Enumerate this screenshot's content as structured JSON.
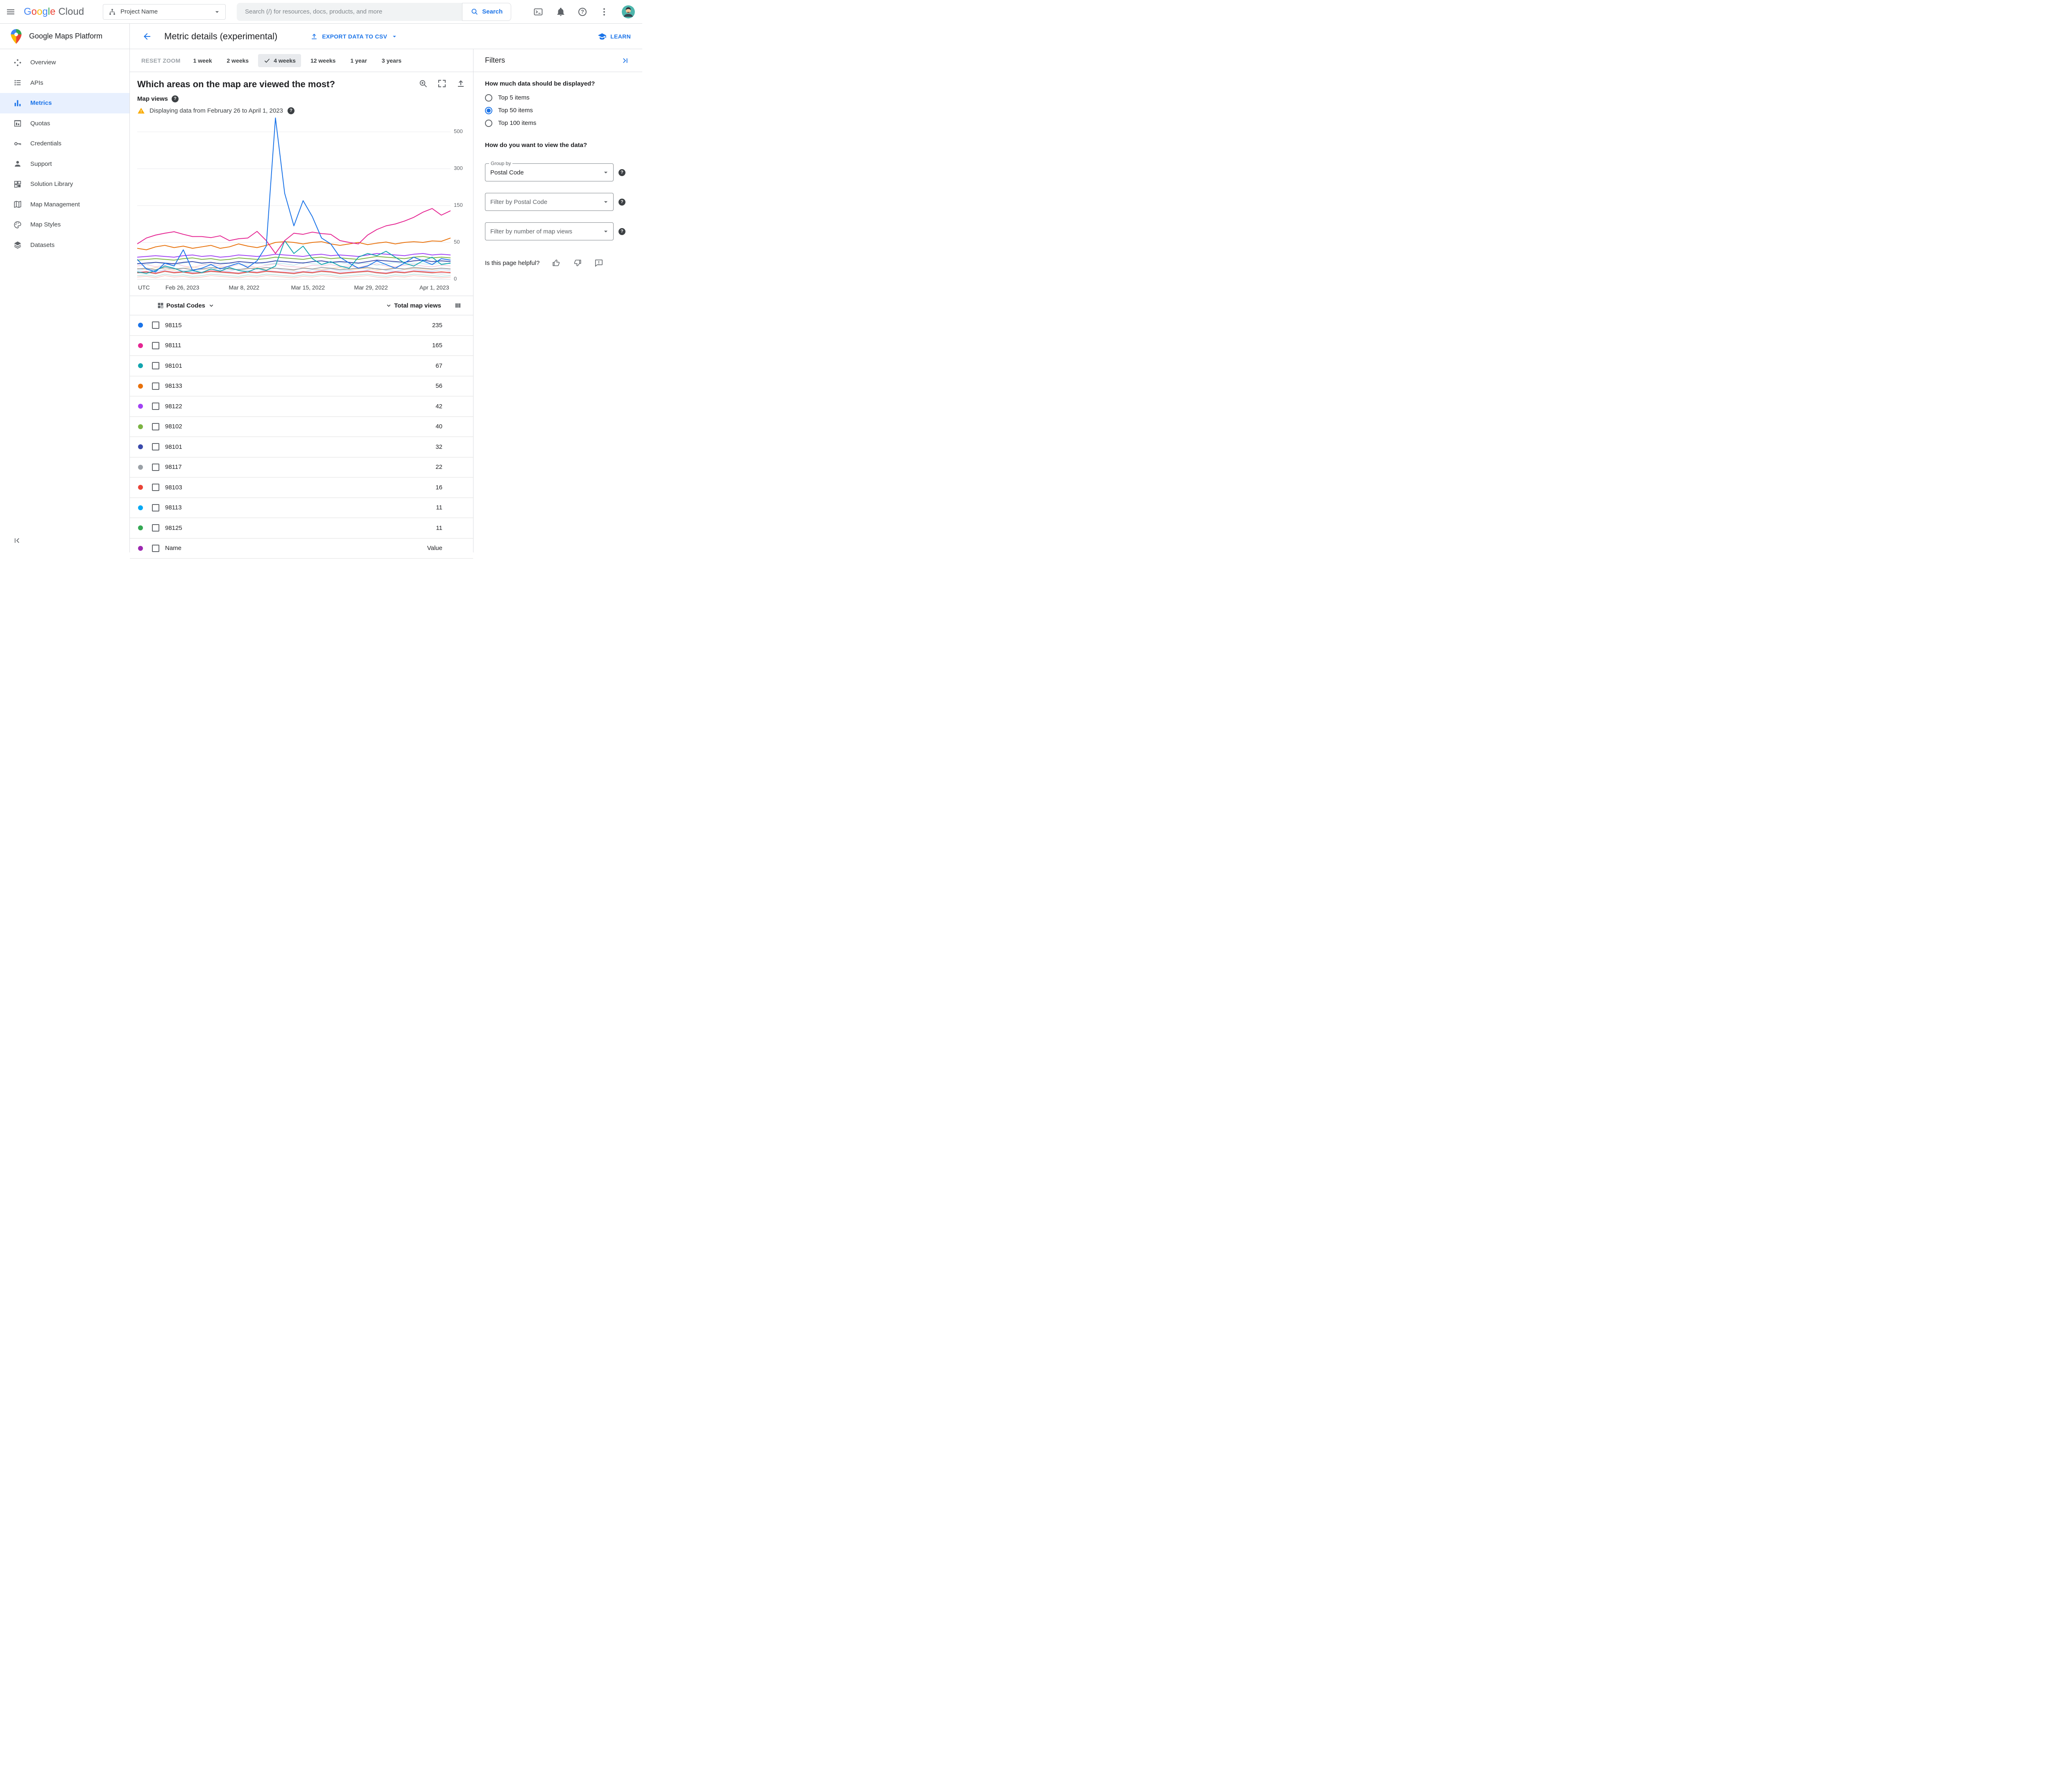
{
  "topbar": {
    "project_selector": "Project Name",
    "search_placeholder": "Search (/) for resources, docs, products, and more",
    "search_button": "Search"
  },
  "brand": {
    "google": "Google",
    "cloud": "Cloud"
  },
  "sidebar": {
    "product": "Google Maps Platform",
    "items": [
      {
        "label": "Overview",
        "icon": "overview-icon",
        "active": false
      },
      {
        "label": "APIs",
        "icon": "apis-icon",
        "active": false
      },
      {
        "label": "Metrics",
        "icon": "metrics-icon",
        "active": true
      },
      {
        "label": "Quotas",
        "icon": "quotas-icon",
        "active": false
      },
      {
        "label": "Credentials",
        "icon": "credentials-icon",
        "active": false
      },
      {
        "label": "Support",
        "icon": "support-icon",
        "active": false
      },
      {
        "label": "Solution Library",
        "icon": "solution-library-icon",
        "active": false
      },
      {
        "label": "Map Management",
        "icon": "map-management-icon",
        "active": false
      },
      {
        "label": "Map Styles",
        "icon": "map-styles-icon",
        "active": false
      },
      {
        "label": "Datasets",
        "icon": "datasets-icon",
        "active": false
      }
    ]
  },
  "page": {
    "title": "Metric details (experimental)",
    "export_button": "EXPORT DATA TO CSV",
    "learn_button": "LEARN"
  },
  "time_controls": {
    "reset_zoom": "RESET ZOOM",
    "ranges": [
      {
        "label": "1 week",
        "selected": false
      },
      {
        "label": "2 weeks",
        "selected": false
      },
      {
        "label": "4 weeks",
        "selected": true
      },
      {
        "label": "12 weeks",
        "selected": false
      },
      {
        "label": "1 year",
        "selected": false
      },
      {
        "label": "3 years",
        "selected": false
      }
    ]
  },
  "chart": {
    "question": "Which areas on the map are viewed the most?",
    "metric_label": "Map views",
    "warning": "Displaying data from February 26 to April 1, 2023",
    "utc_label": "UTC"
  },
  "chart_data": {
    "type": "line",
    "title": "Which areas on the map are viewed the most?",
    "ylabel": "Map views",
    "y_scale_note": "non-linear axis: ticks 0, 50, 150, 300, 500 are evenly spaced",
    "y_ticks": [
      0,
      50,
      150,
      300,
      500
    ],
    "x_ticks": [
      {
        "label": "Feb 26, 2023",
        "pos": 0.144
      },
      {
        "label": "Mar 8, 2022",
        "pos": 0.341
      },
      {
        "label": "Mar 15, 2022",
        "pos": 0.545
      },
      {
        "label": "Mar 29, 2022",
        "pos": 0.746
      },
      {
        "label": "Apr 1, 2023",
        "pos": 0.948
      }
    ],
    "series": [
      {
        "name": "98115",
        "color": "#1a73e8",
        "values": [
          27,
          14,
          10,
          22,
          18,
          40,
          12,
          15,
          20,
          14,
          18,
          22,
          16,
          25,
          45,
          600,
          200,
          95,
          170,
          120,
          62,
          48,
          30,
          22,
          15,
          18,
          25,
          20,
          15,
          22,
          30,
          25,
          20,
          28,
          26
        ]
      },
      {
        "name": "98111",
        "color": "#e52592",
        "values": [
          48,
          62,
          70,
          75,
          79,
          72,
          66,
          66,
          63,
          68,
          55,
          60,
          62,
          80,
          55,
          35,
          55,
          75,
          72,
          78,
          74,
          72,
          55,
          50,
          48,
          70,
          85,
          95,
          100,
          108,
          118,
          132,
          142,
          124,
          136
        ]
      },
      {
        "name": "98101",
        "color": "#12a4af",
        "values": [
          10,
          8,
          12,
          18,
          15,
          10,
          12,
          9,
          14,
          11,
          16,
          12,
          10,
          15,
          12,
          18,
          55,
          35,
          45,
          28,
          20,
          24,
          18,
          15,
          30,
          35,
          32,
          38,
          30,
          22,
          18,
          25,
          30,
          20,
          22
        ]
      },
      {
        "name": "98133",
        "color": "#e8710a",
        "values": [
          42,
          40,
          44,
          46,
          43,
          45,
          42,
          44,
          46,
          42,
          44,
          48,
          45,
          43,
          46,
          50,
          52,
          50,
          48,
          50,
          52,
          48,
          46,
          48,
          50,
          47,
          49,
          51,
          48,
          50,
          52,
          50,
          54,
          53,
          62
        ]
      },
      {
        "name": "98122",
        "color": "#a142f4",
        "values": [
          30,
          31,
          32,
          31,
          30,
          32,
          33,
          31,
          32,
          30,
          31,
          33,
          32,
          31,
          32,
          34,
          33,
          32,
          31,
          33,
          34,
          32,
          33,
          32,
          31,
          33,
          35,
          34,
          33,
          32,
          34,
          35,
          33,
          34,
          33
        ]
      },
      {
        "name": "98102",
        "color": "#7cb342",
        "values": [
          26,
          27,
          28,
          27,
          26,
          28,
          29,
          27,
          28,
          26,
          27,
          29,
          28,
          27,
          28,
          30,
          29,
          28,
          27,
          29,
          30,
          28,
          29,
          28,
          27,
          29,
          31,
          30,
          29,
          28,
          30,
          31,
          29,
          30,
          29
        ]
      },
      {
        "name": "98101",
        "color": "#3949ab",
        "values": [
          21,
          22,
          23,
          22,
          21,
          23,
          24,
          22,
          23,
          21,
          22,
          24,
          23,
          22,
          23,
          25,
          24,
          23,
          22,
          24,
          25,
          23,
          24,
          23,
          22,
          24,
          26,
          25,
          24,
          23,
          25,
          26,
          24,
          25,
          24
        ]
      },
      {
        "name": "98117",
        "color": "#9aa0a6",
        "values": [
          14,
          15,
          13,
          16,
          14,
          15,
          13,
          14,
          16,
          15,
          14,
          13,
          15,
          14,
          16,
          15,
          14,
          13,
          15,
          14,
          16,
          15,
          13,
          14,
          15,
          16,
          14,
          13,
          15,
          14,
          16,
          15,
          14,
          15,
          14
        ]
      },
      {
        "name": "98103",
        "color": "#ea4335",
        "values": [
          9,
          10,
          8,
          11,
          9,
          10,
          8,
          9,
          11,
          10,
          9,
          8,
          10,
          9,
          11,
          10,
          9,
          8,
          10,
          9,
          11,
          10,
          8,
          9,
          10,
          11,
          9,
          8,
          10,
          9,
          11,
          10,
          9,
          10,
          9
        ]
      }
    ],
    "background_series": [
      {
        "color": "#f6c6da",
        "values": [
          18,
          20,
          17,
          19,
          22,
          18,
          16,
          19,
          21,
          18,
          17,
          20,
          18,
          16,
          19,
          21,
          18,
          17,
          16,
          19,
          18,
          20,
          17,
          18,
          16,
          19,
          21,
          18,
          17,
          19,
          20,
          18,
          17,
          19,
          18
        ]
      },
      {
        "color": "#c5dcfa",
        "values": [
          12,
          14,
          11,
          13,
          15,
          12,
          10,
          13,
          14,
          12,
          11,
          14,
          12,
          10,
          13,
          15,
          12,
          11,
          10,
          13,
          12,
          14,
          11,
          12,
          10,
          13,
          15,
          12,
          11,
          13,
          14,
          12,
          11,
          13,
          12
        ]
      },
      {
        "color": "#dadce0",
        "values": [
          8,
          9,
          7,
          10,
          8,
          9,
          7,
          8,
          10,
          9,
          8,
          7,
          9,
          8,
          10,
          9,
          8,
          7,
          9,
          8,
          10,
          9,
          7,
          8,
          9,
          10,
          8,
          7,
          9,
          8,
          10,
          9,
          8,
          7,
          8
        ]
      },
      {
        "color": "#b5e0dc",
        "values": [
          5,
          6,
          4,
          7,
          5,
          6,
          4,
          5,
          7,
          6,
          5,
          4,
          6,
          5,
          7,
          6,
          5,
          4,
          6,
          5,
          7,
          6,
          4,
          5,
          6,
          7,
          5,
          4,
          6,
          5,
          7,
          6,
          5,
          4,
          5
        ]
      },
      {
        "color": "#fad9b2",
        "values": [
          15,
          13,
          16,
          14,
          12,
          15,
          17,
          14,
          13,
          16,
          15,
          13,
          14,
          16,
          13,
          15,
          14,
          12,
          16,
          14,
          13,
          15,
          16,
          13,
          14,
          15,
          12,
          14,
          16,
          13,
          15,
          14,
          13,
          15,
          14
        ]
      },
      {
        "color": "#e3c8f0",
        "values": [
          10,
          11,
          9,
          12,
          10,
          11,
          9,
          10,
          12,
          11,
          10,
          9,
          11,
          10,
          12,
          11,
          10,
          9,
          11,
          10,
          12,
          11,
          9,
          10,
          11,
          12,
          10,
          9,
          11,
          10,
          12,
          11,
          10,
          9,
          10
        ]
      },
      {
        "color": "#f8c9c5",
        "values": [
          3,
          4,
          2,
          5,
          3,
          4,
          2,
          3,
          5,
          4,
          3,
          2,
          4,
          3,
          5,
          4,
          3,
          2,
          4,
          3,
          5,
          4,
          2,
          3,
          4,
          5,
          3,
          2,
          4,
          3,
          5,
          4,
          3,
          2,
          3
        ]
      },
      {
        "color": "#c0e8f0",
        "values": [
          22,
          20,
          23,
          21,
          19,
          22,
          24,
          21,
          20,
          23,
          22,
          20,
          21,
          23,
          20,
          22,
          21,
          19,
          23,
          21,
          20,
          22,
          23,
          20,
          21,
          22,
          19,
          21,
          23,
          20,
          22,
          21,
          20,
          22,
          21
        ]
      }
    ]
  },
  "table": {
    "group_header": "Postal Codes",
    "value_header": "Total map views",
    "rows": [
      {
        "label": "98115",
        "value": "235",
        "color": "#1a73e8"
      },
      {
        "label": "98111",
        "value": "165",
        "color": "#e52592"
      },
      {
        "label": "98101",
        "value": "67",
        "color": "#12a4af"
      },
      {
        "label": "98133",
        "value": "56",
        "color": "#e8710a"
      },
      {
        "label": "98122",
        "value": "42",
        "color": "#a142f4"
      },
      {
        "label": "98102",
        "value": "40",
        "color": "#7cb342"
      },
      {
        "label": "98101",
        "value": "32",
        "color": "#3949ab"
      },
      {
        "label": "98117",
        "value": "22",
        "color": "#9aa0a6"
      },
      {
        "label": "98103",
        "value": "16",
        "color": "#ea4335"
      },
      {
        "label": "98113",
        "value": "11",
        "color": "#03a9f4"
      },
      {
        "label": "98125",
        "value": "11",
        "color": "#34a853"
      },
      {
        "label": "Name",
        "value": "Value",
        "color": "#9c27b0"
      }
    ]
  },
  "filters": {
    "title": "Filters",
    "data_amount_question": "How much data should be displayed?",
    "options": [
      {
        "label": "Top 5 items",
        "selected": false
      },
      {
        "label": "Top 50 items",
        "selected": true
      },
      {
        "label": "Top 100 items",
        "selected": false
      }
    ],
    "view_question": "How do you want to view the data?",
    "group_by_label": "Group by",
    "group_by_value": "Postal Code",
    "filter_postal_label": "Filter by Postal Code",
    "filter_views_label": "Filter by number of map views",
    "helpful_question": "Is this page helpful?"
  },
  "colors": {
    "accent": "#1a73e8",
    "warning": "#f9ab00",
    "active_nav_bg": "#e8f0fe",
    "border": "#dadce0"
  }
}
